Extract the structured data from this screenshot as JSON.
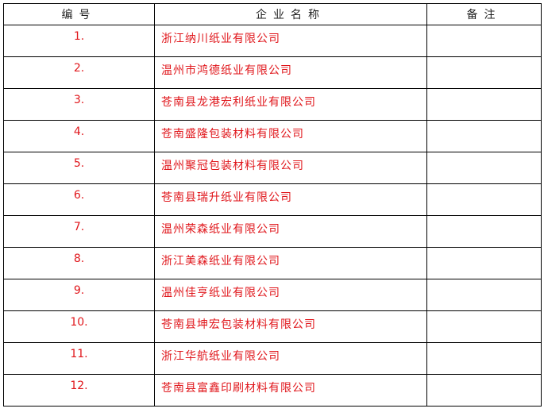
{
  "table": {
    "headers": [
      "编号",
      "企业名称",
      "备注"
    ],
    "rows": [
      {
        "num": "1.",
        "name": "浙江纳川纸业有限公司",
        "note": ""
      },
      {
        "num": "2.",
        "name": "温州市鸿德纸业有限公司",
        "note": ""
      },
      {
        "num": "3.",
        "name": "苍南县龙港宏利纸业有限公司",
        "note": ""
      },
      {
        "num": "4.",
        "name": "苍南盛隆包装材料有限公司",
        "note": ""
      },
      {
        "num": "5.",
        "name": "温州聚冠包装材料有限公司",
        "note": ""
      },
      {
        "num": "6.",
        "name": "苍南县瑞升纸业有限公司",
        "note": ""
      },
      {
        "num": "7.",
        "name": "温州荣森纸业有限公司",
        "note": ""
      },
      {
        "num": "8.",
        "name": "浙江美森纸业有限公司",
        "note": ""
      },
      {
        "num": "9.",
        "name": "温州佳亨纸业有限公司",
        "note": ""
      },
      {
        "num": "10.",
        "name": "苍南县坤宏包装材料有限公司",
        "note": ""
      },
      {
        "num": "11.",
        "name": "浙江华航纸业有限公司",
        "note": ""
      },
      {
        "num": "12.",
        "name": "苍南县富鑫印刷材料有限公司",
        "note": ""
      }
    ]
  },
  "colors": {
    "text_red": "#e0161b",
    "header_text": "#222222",
    "border": "#000000"
  }
}
